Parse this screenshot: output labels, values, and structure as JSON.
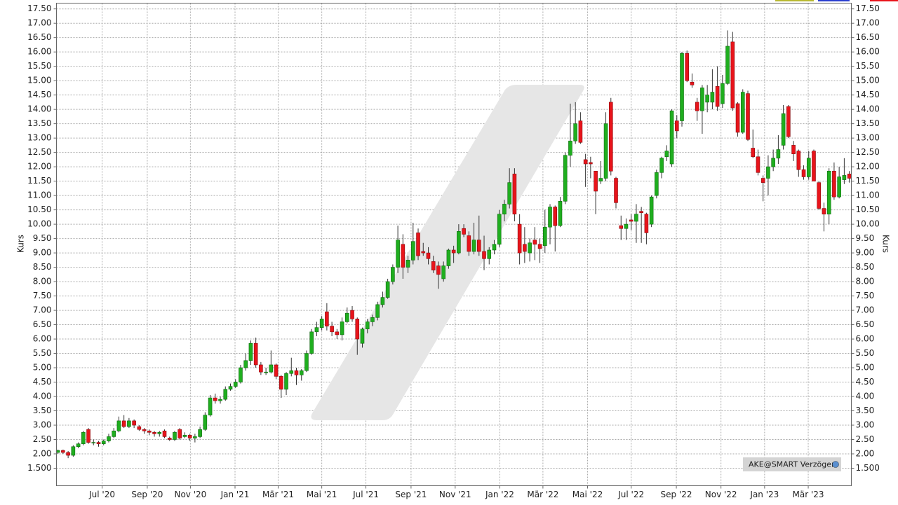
{
  "chart_data": {
    "type": "candlestick",
    "y_label": "Kurs",
    "source": "AKE@SMART Verzögert",
    "up_color": "#1fae1f",
    "down_color": "#e8141b",
    "grid": true,
    "xlim": [
      -0.3,
      156.4
    ],
    "ylim": [
      0.89,
      17.7
    ],
    "xticks": [
      {
        "value": 8.7,
        "label": "Jul '20"
      },
      {
        "value": 17.6,
        "label": "Sep '20"
      },
      {
        "value": 26.1,
        "label": "Nov '20"
      },
      {
        "value": 34.9,
        "label": "Jan '21"
      },
      {
        "value": 43.4,
        "label": "Mär '21"
      },
      {
        "value": 52.0,
        "label": "Mai '21"
      },
      {
        "value": 60.7,
        "label": "Jul '21"
      },
      {
        "value": 69.6,
        "label": "Sep '21"
      },
      {
        "value": 78.3,
        "label": "Nov '21"
      },
      {
        "value": 87.1,
        "label": "Jan '22"
      },
      {
        "value": 95.6,
        "label": "Mär '22"
      },
      {
        "value": 104.4,
        "label": "Mai '22"
      },
      {
        "value": 113.0,
        "label": "Jul '22"
      },
      {
        "value": 121.9,
        "label": "Sep '22"
      },
      {
        "value": 130.7,
        "label": "Nov '22"
      },
      {
        "value": 139.3,
        "label": "Jan '23"
      },
      {
        "value": 147.9,
        "label": "Mär '23"
      }
    ],
    "yticks": [
      {
        "value": 1.5,
        "label": "1.500"
      },
      {
        "value": 2,
        "label": "2.00"
      },
      {
        "value": 2.5,
        "label": "2.50"
      },
      {
        "value": 3,
        "label": "3.00"
      },
      {
        "value": 3.5,
        "label": "3.50"
      },
      {
        "value": 4,
        "label": "4.00"
      },
      {
        "value": 4.5,
        "label": "4.50"
      },
      {
        "value": 5,
        "label": "5.00"
      },
      {
        "value": 5.5,
        "label": "5.50"
      },
      {
        "value": 6,
        "label": "6.00"
      },
      {
        "value": 6.5,
        "label": "6.50"
      },
      {
        "value": 7,
        "label": "7.00"
      },
      {
        "value": 7.5,
        "label": "7.50"
      },
      {
        "value": 8,
        "label": "8.00"
      },
      {
        "value": 8.5,
        "label": "8.50"
      },
      {
        "value": 9,
        "label": "9.00"
      },
      {
        "value": 9.5,
        "label": "9.50"
      },
      {
        "value": 10,
        "label": "10.00"
      },
      {
        "value": 10.5,
        "label": "10.50"
      },
      {
        "value": 11,
        "label": "11.00"
      },
      {
        "value": 11.5,
        "label": "11.50"
      },
      {
        "value": 12,
        "label": "12.00"
      },
      {
        "value": 12.5,
        "label": "12.50"
      },
      {
        "value": 13,
        "label": "13.00"
      },
      {
        "value": 13.5,
        "label": "13.50"
      },
      {
        "value": 14,
        "label": "14.00"
      },
      {
        "value": 14.5,
        "label": "14.50"
      },
      {
        "value": 15,
        "label": "15.00"
      },
      {
        "value": 15.5,
        "label": "15.50"
      },
      {
        "value": 16,
        "label": "16.00"
      },
      {
        "value": 16.5,
        "label": "16.50"
      },
      {
        "value": 17,
        "label": "17.00"
      },
      {
        "value": 17.5,
        "label": "17.50"
      }
    ],
    "open": [
      2.05,
      2.12,
      2.05,
      1.95,
      2.25,
      2.35,
      2.85,
      2.4,
      2.4,
      2.35,
      2.45,
      2.6,
      2.8,
      3.15,
      2.95,
      3.15,
      2.95,
      2.85,
      2.8,
      2.75,
      2.7,
      2.8,
      2.55,
      2.5,
      2.85,
      2.6,
      2.65,
      2.55,
      2.6,
      2.85,
      3.35,
      3.95,
      3.85,
      3.9,
      4.25,
      4.35,
      4.5,
      5.0,
      5.25,
      5.85,
      5.1,
      4.85,
      4.85,
      5.1,
      4.7,
      4.25,
      4.8,
      4.9,
      4.75,
      4.9,
      5.5,
      6.25,
      6.4,
      6.95,
      6.45,
      6.25,
      6.15,
      6.6,
      7.0,
      6.7,
      5.85,
      6.35,
      6.6,
      6.75,
      7.2,
      7.45,
      8.0,
      8.5,
      9.3,
      8.5,
      8.75,
      9.7,
      9.05,
      9.0,
      8.7,
      8.55,
      8.1,
      8.55,
      9.1,
      9.0,
      9.85,
      9.6,
      9.05,
      9.45,
      9.05,
      8.8,
      9.1,
      9.3,
      10.35,
      10.7,
      11.75,
      10.0,
      9.3,
      9.0,
      9.45,
      9.3,
      9.25,
      9.9,
      10.6,
      9.95,
      10.8,
      12.4,
      12.9,
      13.6,
      12.25,
      12.15,
      11.85,
      11.5,
      11.6,
      14.25,
      11.6,
      9.95,
      9.85,
      10.15,
      10.1,
      10.45,
      10.35,
      10.0,
      11.0,
      11.8,
      12.35,
      12.1,
      13.6,
      13.6,
      15.95,
      14.95,
      14.25,
      13.95,
      14.25,
      14.25,
      14.8,
      14.2,
      14.9,
      16.35,
      14.2,
      13.2,
      14.55,
      12.65,
      12.35,
      11.6,
      11.6,
      12.0,
      12.3,
      12.75,
      14.1,
      12.75,
      12.55,
      11.9,
      11.65,
      12.55,
      11.45,
      10.55,
      10.35,
      11.85,
      10.95,
      11.55,
      11.75
    ],
    "high": [
      2.15,
      2.15,
      2.1,
      2.3,
      2.4,
      2.8,
      2.9,
      2.5,
      2.45,
      2.5,
      2.7,
      2.9,
      3.3,
      3.35,
      3.25,
      3.2,
      3.0,
      2.9,
      2.85,
      2.8,
      2.8,
      2.85,
      2.6,
      2.8,
      2.9,
      2.75,
      2.7,
      2.7,
      2.95,
      3.45,
      4.05,
      4.1,
      4.0,
      4.35,
      4.45,
      4.6,
      5.1,
      5.5,
      5.95,
      6.05,
      5.2,
      5.0,
      5.6,
      5.15,
      4.75,
      4.85,
      5.35,
      5.0,
      4.95,
      5.6,
      6.35,
      6.6,
      6.8,
      7.25,
      6.6,
      6.35,
      6.75,
      7.1,
      7.15,
      6.75,
      6.4,
      6.7,
      6.85,
      7.3,
      7.65,
      8.1,
      8.6,
      9.95,
      9.65,
      8.9,
      10.05,
      9.85,
      9.35,
      9.2,
      8.9,
      8.7,
      8.7,
      9.15,
      9.25,
      10.0,
      10.0,
      9.75,
      10.05,
      10.3,
      9.6,
      9.2,
      9.45,
      10.5,
      10.85,
      11.95,
      11.95,
      10.35,
      9.9,
      9.5,
      9.9,
      9.5,
      10.5,
      10.7,
      10.65,
      10.95,
      12.5,
      14.2,
      14.25,
      13.9,
      12.45,
      12.35,
      11.85,
      12.2,
      13.9,
      14.4,
      11.65,
      10.3,
      10.2,
      10.35,
      10.7,
      10.6,
      10.4,
      11.0,
      11.9,
      12.35,
      12.75,
      14.0,
      13.8,
      16.0,
      16.05,
      15.25,
      14.4,
      14.85,
      14.85,
      15.4,
      15.5,
      15.2,
      16.75,
      16.7,
      14.25,
      14.7,
      14.65,
      13.3,
      12.6,
      11.7,
      12.4,
      12.6,
      13.1,
      14.15,
      14.15,
      12.9,
      12.6,
      12.05,
      12.55,
      12.6,
      11.5,
      10.75,
      11.95,
      12.15,
      12.0,
      12.3,
      11.85
    ],
    "low": [
      2.0,
      2.0,
      1.85,
      1.9,
      2.2,
      2.3,
      2.35,
      2.3,
      2.25,
      2.3,
      2.4,
      2.55,
      2.75,
      2.9,
      2.9,
      2.9,
      2.8,
      2.7,
      2.65,
      2.6,
      2.6,
      2.55,
      2.45,
      2.45,
      2.5,
      2.55,
      2.45,
      2.4,
      2.55,
      2.8,
      3.3,
      3.75,
      3.75,
      3.85,
      4.2,
      4.3,
      4.45,
      4.9,
      5.1,
      5.0,
      4.75,
      4.75,
      4.8,
      4.6,
      3.95,
      4.05,
      4.7,
      4.4,
      4.55,
      4.85,
      5.45,
      6.1,
      6.3,
      6.3,
      6.1,
      6.0,
      5.95,
      6.55,
      6.6,
      5.45,
      5.7,
      6.2,
      6.45,
      6.65,
      7.1,
      7.4,
      7.9,
      8.3,
      8.1,
      8.3,
      8.6,
      8.75,
      8.9,
      8.6,
      8.3,
      7.75,
      8.0,
      8.45,
      8.65,
      8.95,
      9.55,
      8.9,
      8.95,
      8.9,
      8.4,
      8.6,
      8.95,
      9.2,
      10.1,
      10.55,
      10.1,
      8.6,
      8.65,
      8.7,
      8.75,
      8.65,
      9.0,
      9.3,
      9.05,
      9.9,
      10.7,
      12.0,
      12.8,
      12.8,
      11.3,
      11.6,
      10.35,
      11.4,
      11.5,
      11.7,
      10.55,
      9.45,
      9.45,
      9.8,
      9.35,
      9.35,
      9.3,
      9.9,
      10.9,
      11.6,
      12.2,
      12.0,
      13.0,
      13.4,
      14.95,
      14.75,
      13.6,
      13.15,
      13.9,
      14.0,
      13.95,
      14.05,
      14.85,
      13.95,
      13.05,
      13.15,
      12.9,
      12.3,
      11.7,
      10.8,
      11.0,
      11.85,
      12.1,
      12.6,
      13.0,
      12.2,
      11.65,
      11.55,
      11.55,
      11.5,
      10.5,
      9.75,
      10.0,
      10.85,
      10.9,
      11.4,
      11.45
    ],
    "close": [
      2.12,
      2.05,
      1.95,
      2.25,
      2.35,
      2.75,
      2.4,
      2.4,
      2.35,
      2.45,
      2.6,
      2.8,
      3.15,
      2.95,
      3.15,
      3.0,
      2.85,
      2.8,
      2.75,
      2.7,
      2.75,
      2.6,
      2.5,
      2.75,
      2.55,
      2.65,
      2.55,
      2.6,
      2.85,
      3.35,
      3.95,
      3.85,
      3.9,
      4.25,
      4.35,
      4.5,
      5.0,
      5.25,
      5.85,
      5.1,
      4.85,
      4.85,
      5.1,
      4.7,
      4.25,
      4.8,
      4.9,
      4.75,
      4.9,
      5.5,
      6.25,
      6.4,
      6.7,
      6.45,
      6.25,
      6.15,
      6.6,
      6.9,
      6.7,
      6.0,
      6.35,
      6.6,
      6.75,
      7.2,
      7.45,
      8.0,
      8.5,
      9.45,
      8.5,
      8.75,
      9.4,
      8.9,
      9.0,
      8.8,
      8.4,
      8.25,
      8.55,
      9.1,
      9.0,
      9.75,
      9.65,
      9.05,
      9.45,
      9.05,
      8.8,
      9.1,
      9.3,
      10.35,
      10.7,
      11.45,
      10.35,
      9.0,
      9.05,
      9.35,
      9.3,
      9.15,
      9.9,
      10.6,
      9.95,
      10.8,
      12.4,
      12.9,
      13.5,
      12.85,
      12.1,
      12.1,
      11.15,
      11.6,
      13.5,
      11.85,
      10.75,
      9.85,
      10.0,
      10.1,
      10.35,
      10.4,
      9.7,
      10.95,
      11.8,
      12.3,
      12.55,
      13.95,
      13.25,
      15.95,
      15.0,
      14.85,
      13.95,
      14.75,
      14.5,
      14.6,
      14.1,
      14.9,
      16.2,
      14.05,
      13.2,
      14.6,
      12.95,
      12.35,
      11.8,
      11.45,
      12.0,
      12.3,
      12.6,
      13.85,
      13.05,
      12.45,
      11.9,
      11.65,
      12.3,
      11.5,
      10.55,
      10.35,
      11.85,
      10.95,
      11.65,
      11.7,
      11.6
    ]
  }
}
